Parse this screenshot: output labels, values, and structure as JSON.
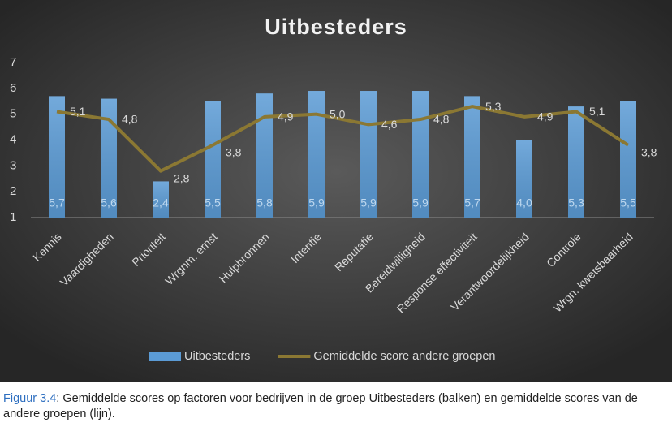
{
  "chart_data": {
    "type": "combo",
    "title": "Uitbesteders",
    "categories": [
      "Kennis",
      "Vaardigheden",
      "Prioriteit",
      "Wrgnm. ernst",
      "Hulpbronnen",
      "Intentie",
      "Reputatie",
      "Bereidwilligheid",
      "Response effectiviteit",
      "Verantwoordelijkheid",
      "Controle",
      "Wrgn. kwetsbaarheid"
    ],
    "series": [
      {
        "name": "Uitbesteders",
        "type": "bar",
        "color": "#5b9bd5",
        "values": [
          5.7,
          5.6,
          2.4,
          5.5,
          5.8,
          5.9,
          5.9,
          5.9,
          5.7,
          4.0,
          5.3,
          5.5
        ],
        "value_labels": [
          "5,7",
          "5,6",
          "2,4",
          "5,5",
          "5,8",
          "5,9",
          "5,9",
          "5,9",
          "5,7",
          "4,0",
          "5,3",
          "5,5"
        ]
      },
      {
        "name": "Gemiddelde score andere groepen",
        "type": "line",
        "color": "#8b7833",
        "values": [
          5.1,
          4.8,
          2.8,
          3.8,
          4.9,
          5.0,
          4.6,
          4.8,
          5.3,
          4.9,
          5.1,
          3.8
        ],
        "value_labels": [
          "5,1",
          "4,8",
          "2,8",
          "3,8",
          "4,9",
          "5,0",
          "4,6",
          "4,8",
          "5,3",
          "4,9",
          "5,1",
          "3,8"
        ]
      }
    ],
    "ylim": [
      1,
      7
    ],
    "yticks": [
      1,
      2,
      3,
      4,
      5,
      6,
      7
    ],
    "grid": false,
    "legend": "bottom"
  },
  "caption": {
    "label": "Figuur 3.4",
    "text": ": Gemiddelde scores op factoren voor bedrijven in de groep Uitbesteders (balken) en gemiddelde scores van de andere groepen (lijn)."
  }
}
